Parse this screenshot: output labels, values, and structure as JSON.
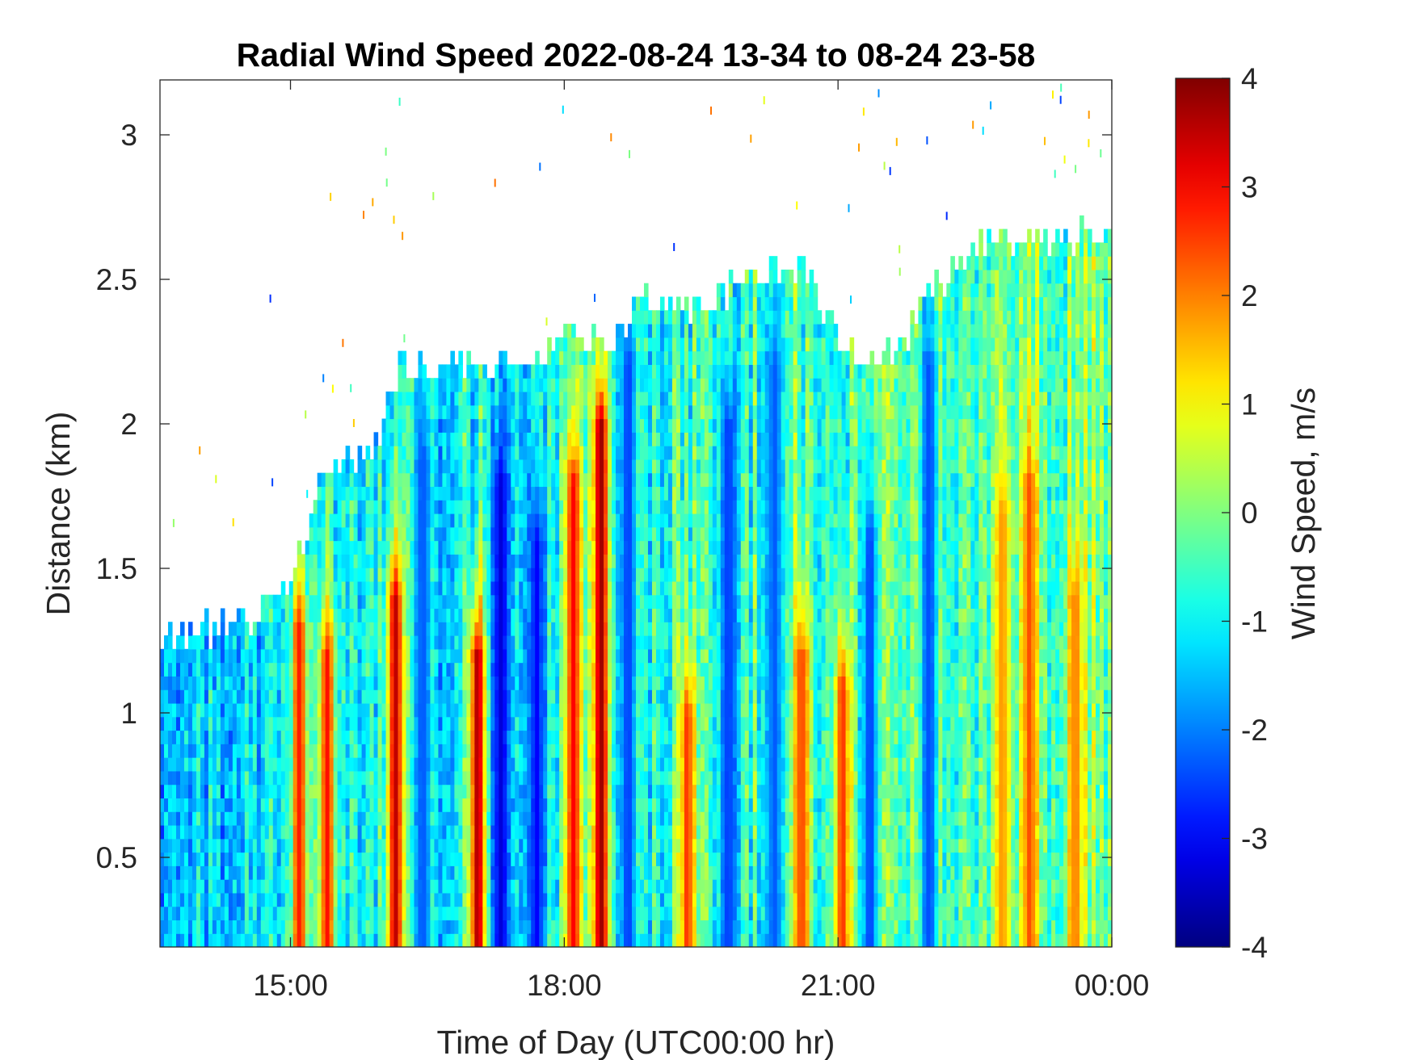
{
  "chart_data": {
    "type": "heatmap",
    "title": "Radial Wind Speed 2022-08-24 13-34 to 08-24 23-58",
    "xlabel": "Time of Day (UTC00:00 hr)",
    "ylabel": "Distance (km)",
    "colorbar_label": "Wind Speed, m/s",
    "colormap": "jet",
    "x_range_hours": [
      13.57,
      24.0
    ],
    "xlim": [
      "13:34",
      "00:00"
    ],
    "ylim": [
      0.19,
      3.19
    ],
    "clim": [
      -4,
      4
    ],
    "x_ticks": [
      {
        "value": 15,
        "label": "15:00"
      },
      {
        "value": 18,
        "label": "18:00"
      },
      {
        "value": 21,
        "label": "21:00"
      },
      {
        "value": 24,
        "label": "00:00"
      }
    ],
    "y_ticks": [
      {
        "value": 0.5,
        "label": "0.5"
      },
      {
        "value": 1,
        "label": "1"
      },
      {
        "value": 1.5,
        "label": "1.5"
      },
      {
        "value": 2,
        "label": "2"
      },
      {
        "value": 2.5,
        "label": "2.5"
      },
      {
        "value": 3,
        "label": "3"
      }
    ],
    "colorbar_ticks": [
      {
        "value": 4,
        "label": "4"
      },
      {
        "value": 3,
        "label": "3"
      },
      {
        "value": 2,
        "label": "2"
      },
      {
        "value": 1,
        "label": "1"
      },
      {
        "value": 0,
        "label": "0"
      },
      {
        "value": -1,
        "label": "-1"
      },
      {
        "value": -2,
        "label": "-2"
      },
      {
        "value": -3,
        "label": "-3"
      },
      {
        "value": -4,
        "label": "-4"
      }
    ],
    "data_ceiling_km": [
      {
        "hour": 13.57,
        "km": 1.27
      },
      {
        "hour": 14.0,
        "km": 1.28
      },
      {
        "hour": 14.5,
        "km": 1.33
      },
      {
        "hour": 15.0,
        "km": 1.45
      },
      {
        "hour": 15.3,
        "km": 1.75
      },
      {
        "hour": 15.6,
        "km": 1.9
      },
      {
        "hour": 15.9,
        "km": 1.88
      },
      {
        "hour": 16.2,
        "km": 2.2
      },
      {
        "hour": 16.8,
        "km": 2.2
      },
      {
        "hour": 17.5,
        "km": 2.2
      },
      {
        "hour": 18.0,
        "km": 2.32
      },
      {
        "hour": 18.5,
        "km": 2.3
      },
      {
        "hour": 19.0,
        "km": 2.45
      },
      {
        "hour": 19.5,
        "km": 2.4
      },
      {
        "hour": 20.0,
        "km": 2.5
      },
      {
        "hour": 20.6,
        "km": 2.55
      },
      {
        "hour": 21.0,
        "km": 2.3
      },
      {
        "hour": 21.5,
        "km": 2.2
      },
      {
        "hour": 22.0,
        "km": 2.45
      },
      {
        "hour": 22.5,
        "km": 2.6
      },
      {
        "hour": 23.0,
        "km": 2.65
      },
      {
        "hour": 23.5,
        "km": 2.65
      },
      {
        "hour": 24.0,
        "km": 2.65
      }
    ],
    "wind_streaks": [
      {
        "hour": 15.1,
        "value": 2.8,
        "top_km": 1.3
      },
      {
        "hour": 15.4,
        "value": 2.9,
        "top_km": 1.2
      },
      {
        "hour": 16.15,
        "value": 3.5,
        "top_km": 1.4
      },
      {
        "hour": 16.45,
        "value": -2.3,
        "top_km": 1.9
      },
      {
        "hour": 17.05,
        "value": 3.6,
        "top_km": 1.2
      },
      {
        "hour": 17.3,
        "value": -3.3,
        "top_km": 1.8
      },
      {
        "hour": 17.7,
        "value": -3.0,
        "top_km": 1.6
      },
      {
        "hour": 18.1,
        "value": 3.0,
        "top_km": 1.8
      },
      {
        "hour": 18.4,
        "value": 3.8,
        "top_km": 2.0
      },
      {
        "hour": 18.7,
        "value": -2.5,
        "top_km": 2.2
      },
      {
        "hour": 19.35,
        "value": 2.6,
        "top_km": 1.0
      },
      {
        "hour": 19.8,
        "value": -2.6,
        "top_km": 2.0
      },
      {
        "hour": 20.3,
        "value": -2.3,
        "top_km": 2.2
      },
      {
        "hour": 20.6,
        "value": 2.5,
        "top_km": 1.2
      },
      {
        "hour": 21.05,
        "value": 2.6,
        "top_km": 1.1
      },
      {
        "hour": 21.35,
        "value": -2.5,
        "top_km": 1.6
      },
      {
        "hour": 22.0,
        "value": -2.4,
        "top_km": 2.2
      },
      {
        "hour": 22.8,
        "value": 1.8,
        "top_km": 1.7
      },
      {
        "hour": 23.1,
        "value": 2.4,
        "top_km": 1.8
      },
      {
        "hour": 23.6,
        "value": 2.0,
        "top_km": 1.4
      }
    ]
  }
}
